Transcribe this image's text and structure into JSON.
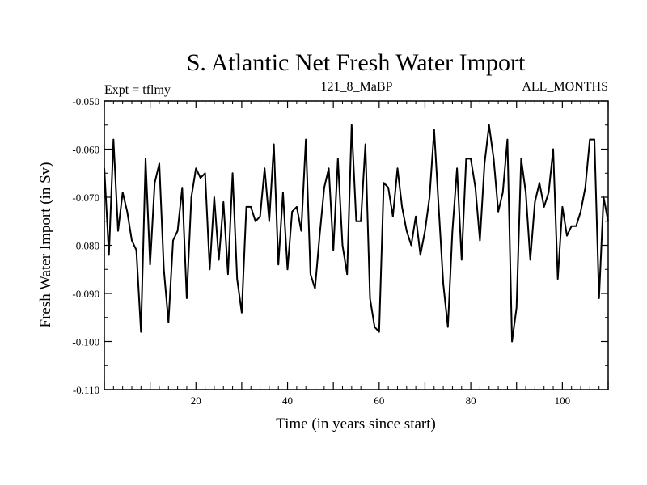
{
  "chart_data": {
    "type": "line",
    "title": "S. Atlantic Net Fresh Water Import",
    "subtitle_left": "Expt = tflmy",
    "subtitle_center": "121_8_MaBP",
    "subtitle_right": "ALL_MONTHS",
    "xlabel": "Time (in years since start)",
    "ylabel": "Fresh Water Import (in Sv)",
    "xlim": [
      0,
      110
    ],
    "ylim": [
      -0.11,
      -0.05
    ],
    "xticks": [
      20,
      40,
      60,
      80,
      100
    ],
    "xtick_labels": [
      "20",
      "40",
      "60",
      "80",
      "100"
    ],
    "yticks": [
      -0.11,
      -0.1,
      -0.09,
      -0.08,
      -0.07,
      -0.06,
      -0.05
    ],
    "ytick_labels": [
      "-0.110",
      "-0.100",
      "-0.090",
      "-0.080",
      "-0.070",
      "-0.060",
      "-0.050"
    ],
    "grid": false,
    "line_color": "#000000",
    "series": [
      {
        "name": "Net Fresh Water Import",
        "x": [
          0,
          1,
          2,
          3,
          4,
          5,
          6,
          7,
          8,
          9,
          10,
          11,
          12,
          13,
          14,
          15,
          16,
          17,
          18,
          19,
          20,
          21,
          22,
          23,
          24,
          25,
          26,
          27,
          28,
          29,
          30,
          31,
          32,
          33,
          34,
          35,
          36,
          37,
          38,
          39,
          40,
          41,
          42,
          43,
          44,
          45,
          46,
          47,
          48,
          49,
          50,
          51,
          52,
          53,
          54,
          55,
          56,
          57,
          58,
          59,
          60,
          61,
          62,
          63,
          64,
          65,
          66,
          67,
          68,
          69,
          70,
          71,
          72,
          73,
          74,
          75,
          76,
          77,
          78,
          79,
          80,
          81,
          82,
          83,
          84,
          85,
          86,
          87,
          88,
          89,
          90,
          91,
          92,
          93,
          94,
          95,
          96,
          97,
          98,
          99,
          100,
          101,
          102,
          103,
          104,
          105,
          106,
          107,
          108,
          109,
          110
        ],
        "values": [
          -0.064,
          -0.082,
          -0.058,
          -0.077,
          -0.069,
          -0.073,
          -0.079,
          -0.081,
          -0.098,
          -0.062,
          -0.084,
          -0.067,
          -0.063,
          -0.085,
          -0.096,
          -0.079,
          -0.077,
          -0.068,
          -0.091,
          -0.07,
          -0.064,
          -0.066,
          -0.065,
          -0.085,
          -0.07,
          -0.083,
          -0.071,
          -0.086,
          -0.065,
          -0.087,
          -0.094,
          -0.072,
          -0.072,
          -0.075,
          -0.074,
          -0.064,
          -0.075,
          -0.059,
          -0.084,
          -0.069,
          -0.085,
          -0.073,
          -0.072,
          -0.077,
          -0.058,
          -0.086,
          -0.089,
          -0.078,
          -0.068,
          -0.064,
          -0.081,
          -0.062,
          -0.08,
          -0.086,
          -0.055,
          -0.075,
          -0.075,
          -0.059,
          -0.091,
          -0.097,
          -0.098,
          -0.067,
          -0.068,
          -0.074,
          -0.064,
          -0.072,
          -0.077,
          -0.08,
          -0.074,
          -0.082,
          -0.077,
          -0.07,
          -0.056,
          -0.072,
          -0.088,
          -0.097,
          -0.077,
          -0.064,
          -0.083,
          -0.062,
          -0.062,
          -0.068,
          -0.079,
          -0.063,
          -0.055,
          -0.062,
          -0.073,
          -0.069,
          -0.058,
          -0.1,
          -0.093,
          -0.062,
          -0.069,
          -0.083,
          -0.071,
          -0.067,
          -0.072,
          -0.069,
          -0.06,
          -0.087,
          -0.072,
          -0.078,
          -0.076,
          -0.076,
          -0.073,
          -0.068,
          -0.058,
          -0.058,
          -0.091,
          -0.07,
          -0.075
        ]
      }
    ]
  }
}
